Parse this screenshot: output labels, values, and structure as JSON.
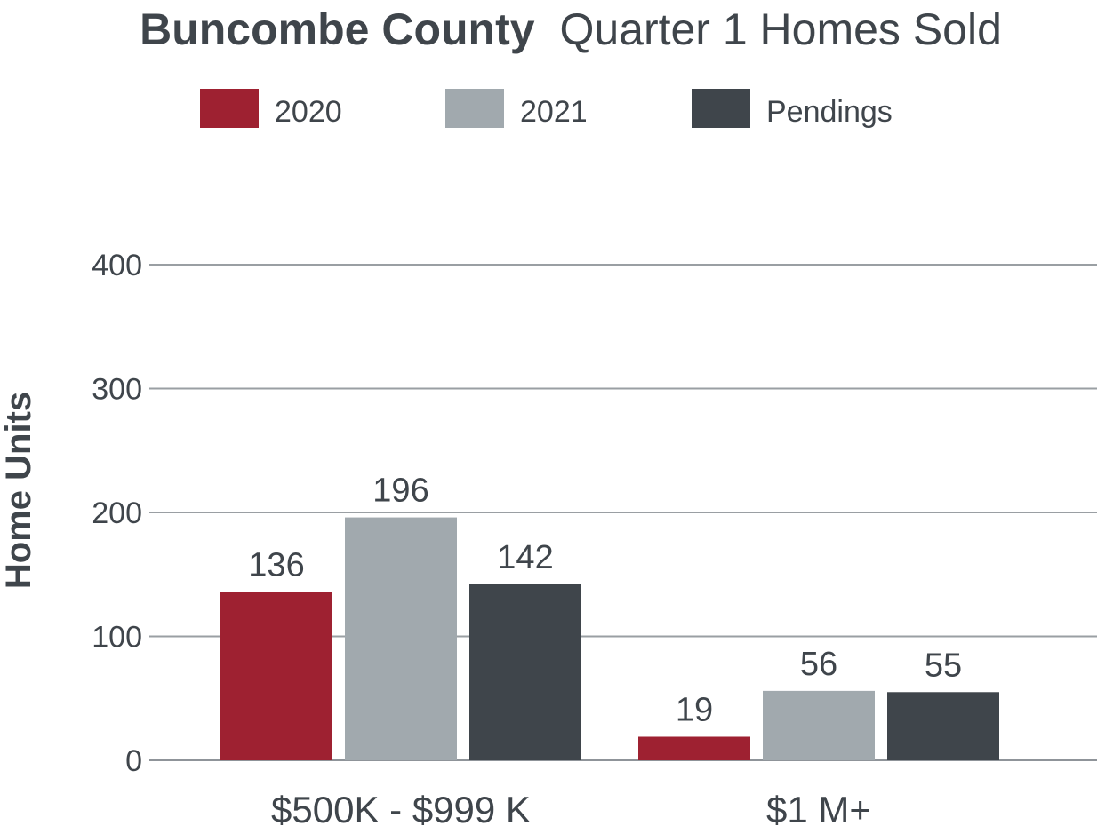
{
  "chart_data": {
    "type": "bar",
    "title_bold": "Buncombe County",
    "title_rest": "Quarter 1 Homes Sold",
    "ylabel": "Home Units",
    "xlabel": "",
    "ylim": [
      0,
      400
    ],
    "yticks": [
      0,
      100,
      200,
      300,
      400
    ],
    "grid": true,
    "legend_position": "top-center",
    "categories": [
      "$500K - $999 K",
      "$1 M+"
    ],
    "series": [
      {
        "name": "2020",
        "color": "#9e2131",
        "values": [
          136,
          19
        ]
      },
      {
        "name": "2021",
        "color": "#a1a9ae",
        "values": [
          196,
          56
        ]
      },
      {
        "name": "Pendings",
        "color": "#3f454b",
        "values": [
          142,
          55
        ]
      }
    ]
  }
}
